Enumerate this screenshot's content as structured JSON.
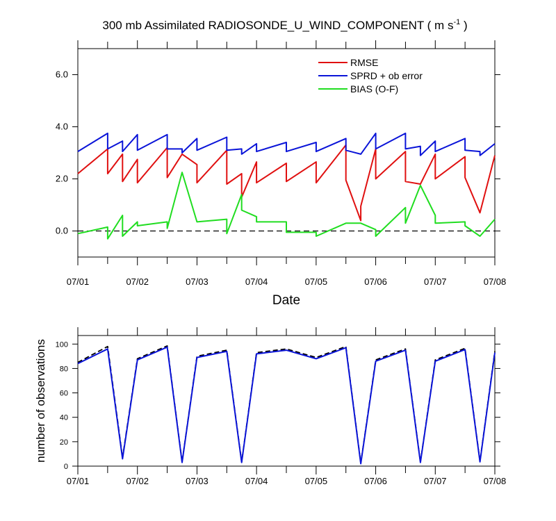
{
  "chart_data": [
    {
      "type": "line",
      "title": "300 mb Assimilated RADIOSONDE_U_WIND_COMPONENT ( m s",
      "title_sup": "-1",
      "title_end": " )",
      "xlabel": "Date",
      "ylabel": "",
      "x_ticks": [
        "07/01",
        "07/02",
        "07/03",
        "07/04",
        "07/05",
        "07/06",
        "07/07",
        "07/08"
      ],
      "xlim": [
        0,
        7
      ],
      "ylim": [
        -1,
        7
      ],
      "y_ticks": [
        "0.0",
        "2.0",
        "4.0",
        "6.0"
      ],
      "y_tick_values": [
        0,
        2,
        4,
        6
      ],
      "reference_line": {
        "y": 0,
        "style": "dashed"
      },
      "legend": [
        {
          "label": "RMSE",
          "color": "#e01010"
        },
        {
          "label": "SPRD + ob error",
          "color": "#0a14d8"
        },
        {
          "label": "BIAS (O-F)",
          "color": "#20dd20"
        }
      ],
      "series": [
        {
          "name": "RMSE",
          "color": "#e01010",
          "points": [
            [
              0,
              2.2
            ],
            [
              0.5,
              3.15
            ],
            [
              0.5,
              2.2
            ],
            [
              0.75,
              2.95
            ],
            [
              0.75,
              1.9
            ],
            [
              1,
              2.75
            ],
            [
              1,
              1.85
            ],
            [
              1.5,
              3.2
            ],
            [
              1.5,
              2.05
            ],
            [
              1.75,
              2.95
            ],
            [
              2,
              2.55
            ],
            [
              2,
              1.85
            ],
            [
              2.5,
              3.1
            ],
            [
              2.5,
              1.8
            ],
            [
              2.75,
              2.2
            ],
            [
              2.75,
              1.3
            ],
            [
              3,
              2.65
            ],
            [
              3,
              1.85
            ],
            [
              3.5,
              2.6
            ],
            [
              3.5,
              1.9
            ],
            [
              4,
              2.65
            ],
            [
              4,
              1.85
            ],
            [
              4.5,
              3.3
            ],
            [
              4.5,
              1.95
            ],
            [
              4.75,
              0.4
            ],
            [
              4.75,
              0.95
            ],
            [
              5,
              3.15
            ],
            [
              5,
              2.0
            ],
            [
              5.5,
              3.05
            ],
            [
              5.5,
              1.9
            ],
            [
              5.75,
              1.8
            ],
            [
              6,
              2.95
            ],
            [
              6,
              2.0
            ],
            [
              6.5,
              2.85
            ],
            [
              6.5,
              2.05
            ],
            [
              6.75,
              0.7
            ],
            [
              7,
              2.9
            ]
          ]
        },
        {
          "name": "SPRD + ob error",
          "color": "#0a14d8",
          "points": [
            [
              0,
              3.05
            ],
            [
              0.5,
              3.75
            ],
            [
              0.5,
              3.15
            ],
            [
              0.75,
              3.45
            ],
            [
              0.75,
              3.05
            ],
            [
              1,
              3.7
            ],
            [
              1,
              3.1
            ],
            [
              1.5,
              3.7
            ],
            [
              1.5,
              3.15
            ],
            [
              1.75,
              3.15
            ],
            [
              1.75,
              3.0
            ],
            [
              2,
              3.55
            ],
            [
              2,
              3.1
            ],
            [
              2.5,
              3.6
            ],
            [
              2.5,
              3.1
            ],
            [
              2.75,
              3.15
            ],
            [
              2.75,
              2.95
            ],
            [
              3,
              3.35
            ],
            [
              3,
              3.05
            ],
            [
              3.5,
              3.4
            ],
            [
              3.5,
              3.05
            ],
            [
              4,
              3.4
            ],
            [
              4,
              3.05
            ],
            [
              4.5,
              3.55
            ],
            [
              4.5,
              3.1
            ],
            [
              4.75,
              2.95
            ],
            [
              5,
              3.75
            ],
            [
              5,
              3.15
            ],
            [
              5.5,
              3.75
            ],
            [
              5.5,
              3.15
            ],
            [
              5.75,
              3.25
            ],
            [
              5.75,
              2.9
            ],
            [
              6,
              3.45
            ],
            [
              6,
              3.05
            ],
            [
              6.5,
              3.55
            ],
            [
              6.5,
              3.1
            ],
            [
              6.75,
              3.05
            ],
            [
              6.75,
              2.9
            ],
            [
              7,
              3.35
            ]
          ]
        },
        {
          "name": "BIAS (O-F)",
          "color": "#20dd20",
          "points": [
            [
              0,
              -0.1
            ],
            [
              0.5,
              0.15
            ],
            [
              0.5,
              -0.3
            ],
            [
              0.75,
              0.6
            ],
            [
              0.75,
              -0.2
            ],
            [
              1,
              0.35
            ],
            [
              1,
              0.2
            ],
            [
              1.5,
              0.35
            ],
            [
              1.5,
              0.1
            ],
            [
              1.75,
              2.25
            ],
            [
              2,
              0.35
            ],
            [
              2.5,
              0.45
            ],
            [
              2.5,
              -0.1
            ],
            [
              2.75,
              1.4
            ],
            [
              2.75,
              0.8
            ],
            [
              3,
              0.55
            ],
            [
              3,
              0.35
            ],
            [
              3.5,
              0.35
            ],
            [
              3.5,
              -0.05
            ],
            [
              4,
              -0.05
            ],
            [
              4,
              -0.2
            ],
            [
              4.5,
              0.3
            ],
            [
              4.75,
              0.3
            ],
            [
              5,
              0.05
            ],
            [
              5,
              -0.2
            ],
            [
              5.5,
              0.9
            ],
            [
              5.5,
              0.3
            ],
            [
              5.75,
              1.75
            ],
            [
              6,
              0.6
            ],
            [
              6,
              0.3
            ],
            [
              6.5,
              0.35
            ],
            [
              6.5,
              0.2
            ],
            [
              6.75,
              -0.2
            ],
            [
              7,
              0.45
            ]
          ]
        }
      ]
    },
    {
      "type": "line",
      "title": "",
      "xlabel": "",
      "ylabel": "number of observations",
      "x_ticks": [
        "07/01",
        "07/02",
        "07/03",
        "07/04",
        "07/05",
        "07/06",
        "07/07",
        "07/08"
      ],
      "xlim": [
        0,
        7
      ],
      "ylim": [
        0,
        107
      ],
      "y_ticks": [
        "0",
        "20",
        "40",
        "60",
        "80",
        "100"
      ],
      "y_tick_values": [
        0,
        20,
        40,
        60,
        80,
        100
      ],
      "series": [
        {
          "name": "number of observations (dashed)",
          "color": "#000000",
          "dashed": true,
          "points": [
            [
              0,
              85
            ],
            [
              0.5,
              98
            ],
            [
              0.75,
              7
            ],
            [
              1,
              88
            ],
            [
              1.5,
              98.5
            ],
            [
              1.75,
              3.5
            ],
            [
              2,
              90
            ],
            [
              2.5,
              95
            ],
            [
              2.75,
              3.5
            ],
            [
              3,
              93
            ],
            [
              3.5,
              96
            ],
            [
              4,
              89
            ],
            [
              4.5,
              98
            ],
            [
              4.75,
              2.5
            ],
            [
              5,
              87
            ],
            [
              5.5,
              96
            ],
            [
              5.75,
              3.5
            ],
            [
              6,
              87
            ],
            [
              6.5,
              96.5
            ],
            [
              6.75,
              4
            ],
            [
              7,
              94
            ]
          ]
        },
        {
          "name": "number of observations",
          "color": "#0a14d8",
          "dashed": false,
          "points": [
            [
              0,
              84
            ],
            [
              0.5,
              96
            ],
            [
              0.75,
              6
            ],
            [
              1,
              87
            ],
            [
              1.5,
              97.5
            ],
            [
              1.75,
              3
            ],
            [
              2,
              89
            ],
            [
              2.5,
              94
            ],
            [
              2.75,
              3
            ],
            [
              3,
              92
            ],
            [
              3.5,
              95
            ],
            [
              4,
              88
            ],
            [
              4.5,
              97
            ],
            [
              4.75,
              2
            ],
            [
              5,
              86
            ],
            [
              5.5,
              95
            ],
            [
              5.75,
              3
            ],
            [
              6,
              86
            ],
            [
              6.5,
              95.5
            ],
            [
              6.75,
              3.5
            ],
            [
              7,
              93
            ]
          ]
        }
      ]
    }
  ]
}
